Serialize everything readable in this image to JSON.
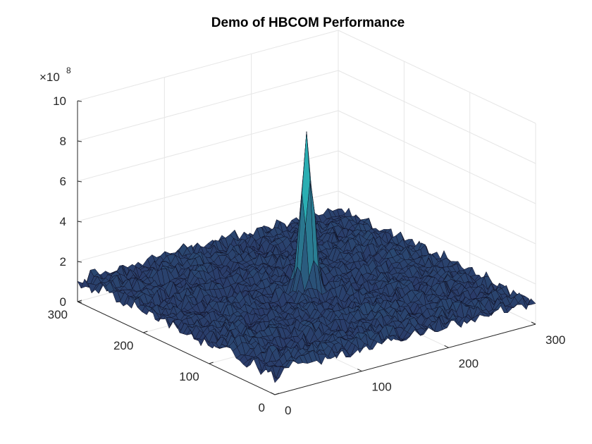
{
  "chart_data": {
    "type": "surface",
    "title": "Demo of HBCOM Performance",
    "xlabel": "",
    "ylabel": "",
    "zlabel": "",
    "x_ticks": [
      "0",
      "100",
      "200",
      "300"
    ],
    "y_ticks": [
      "0",
      "100",
      "200",
      "300"
    ],
    "z_ticks": [
      "0",
      "2",
      "4",
      "6",
      "8",
      "10"
    ],
    "z_exponent_base": "×10",
    "z_exponent_power": "8",
    "xlim": [
      0,
      300
    ],
    "ylim": [
      0,
      300
    ],
    "zlim": [
      0,
      1000000000
    ],
    "grid": true,
    "background_level": 150000000,
    "noise_amplitude": 120000000,
    "peak": {
      "x": 150,
      "y": 150,
      "z": 780000000,
      "width": 6
    },
    "colors": {
      "surface_low": "#2a2a5e",
      "surface_high": "#2ab8b8",
      "mesh": "#0d0d1f",
      "grid": "#e6e6e6",
      "axis": "#262626"
    }
  }
}
